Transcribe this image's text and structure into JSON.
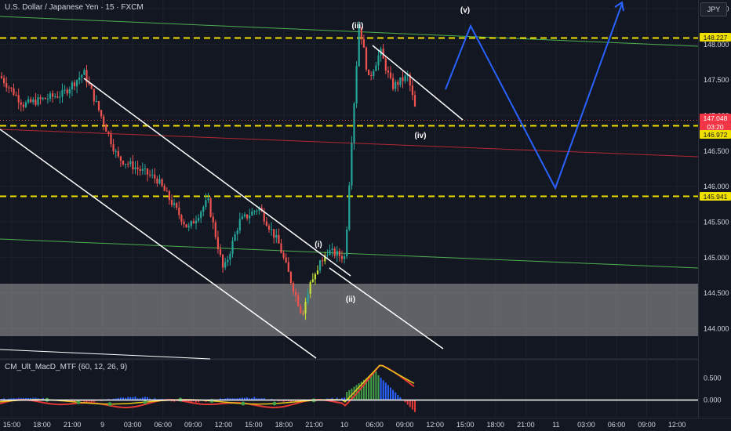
{
  "header": {
    "symbol_title": "U.S. Dollar / Japanese Yen · 15 · FXCM"
  },
  "currency_button": "JPY",
  "indicator": {
    "title": "CM_Ult_MacD_MTF (60, 12, 26, 9)"
  },
  "price_axis": {
    "ticks": [
      "148.500",
      "148.000",
      "147.500",
      "147.000",
      "146.500",
      "146.000",
      "145.500",
      "145.000",
      "144.500",
      "144.000"
    ],
    "tick_values": [
      148.5,
      148.0,
      147.5,
      147.0,
      146.5,
      146.0,
      145.5,
      145.0,
      144.5,
      144.0
    ]
  },
  "price_tags": [
    {
      "label": "148.227",
      "value": 148.227,
      "bg": "#f0e000",
      "fg": "#131722"
    },
    {
      "label": "147.048",
      "value": 147.048,
      "bg": "#f23645",
      "fg": "#ffffff"
    },
    {
      "label": "03:20",
      "value": 146.95,
      "bg": "#f23645",
      "fg": "#ffffff"
    },
    {
      "label": "146.972",
      "value": 146.972,
      "bg": "#f0e000",
      "fg": "#131722"
    },
    {
      "label": "145.941",
      "value": 145.941,
      "bg": "#f0e000",
      "fg": "#131722"
    }
  ],
  "indicator_axis": {
    "ticks": [
      "0.500",
      "0.000"
    ],
    "tick_values": [
      0.5,
      0.0
    ]
  },
  "time_axis": [
    "15:00",
    "18:00",
    "21:00",
    "9",
    "03:00",
    "06:00",
    "09:00",
    "12:00",
    "15:00",
    "18:00",
    "21:00",
    "10",
    "06:00",
    "09:00",
    "12:00",
    "15:00",
    "18:00",
    "21:00",
    "11",
    "03:00",
    "06:00",
    "09:00",
    "12:00"
  ],
  "wave_labels": [
    "(i)",
    "(ii)",
    "(iii)",
    "(iv)",
    "(v)"
  ],
  "colors": {
    "background": "#131722",
    "bull": "#26a69a",
    "bear": "#ef5350",
    "grid": "#1e222d",
    "yellow": "#f0e000",
    "projection": "#2962ff",
    "channel": "#ffffff",
    "green_line": "#4caf50",
    "red_line": "#b22833",
    "zone": "#9e9e9e",
    "text": "#d1d4dc",
    "macd_yellow": "#e6c619",
    "macd_red": "#e53935",
    "macd_green": "#43a047",
    "hist_blue": "#2962ff"
  },
  "chart_data": {
    "type": "candlestick",
    "title": "U.S. Dollar / Japanese Yen · 15 · FXCM",
    "y_axis_range": [
      143.75,
      148.75
    ],
    "horizontal_levels": [
      148.227,
      146.972,
      145.941
    ],
    "support_zone": [
      143.9,
      144.65
    ],
    "wave_points": [
      {
        "label": "(i)",
        "price": 145.25
      },
      {
        "label": "(ii)",
        "price": 144.55
      },
      {
        "label": "(iii)",
        "price": 148.3
      },
      {
        "label": "(iv)",
        "price": 146.9
      },
      {
        "label": "(v)",
        "price": 148.6
      }
    ],
    "current_price": 147.048,
    "indicator": {
      "name": "CM_Ult_MacD_MTF",
      "params": [
        60,
        12,
        26,
        9
      ],
      "y_range": [
        -0.25,
        0.75
      ]
    }
  }
}
